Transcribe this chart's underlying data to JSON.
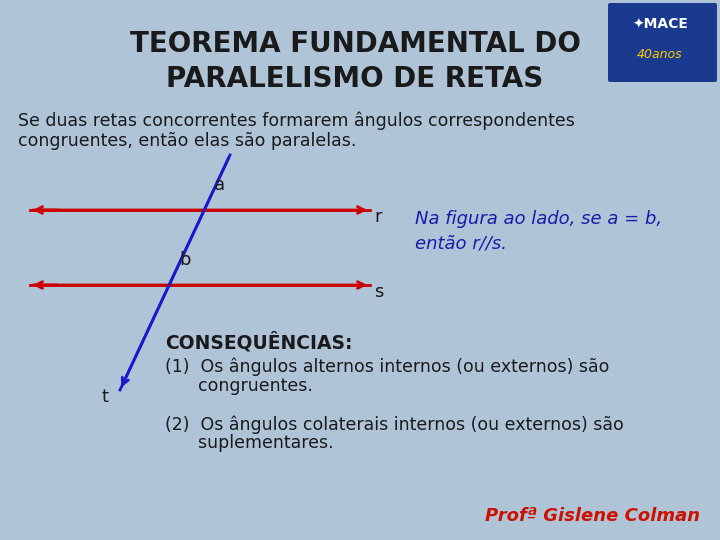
{
  "bg_color": "#b0c4d8",
  "title_line1": "TEOREMA FUNDAMENTAL DO",
  "title_line2": "PARALELISMO DE RETAS",
  "title_color": "#1a1a1a",
  "title_fontsize": 20,
  "subtitle_line1": "Se duas retas concorrentes formarem ângulos correspondentes",
  "subtitle_line2": "congruentes, então elas são paralelas.",
  "subtitle_fontsize": 12.5,
  "subtitle_color": "#1a1a1a",
  "note_line1": "Na figura ao lado, se a = b,",
  "note_line2": "então r//s.",
  "note_color": "#1a1aaa",
  "note_fontsize": 13,
  "line_color": "#cc0000",
  "transversal_color": "#1a1acc",
  "label_color": "#1a1a1a",
  "label_fontsize": 13,
  "conseq_title": "CONSEQUÊNCI AS:",
  "conseq_fontsize": 13.5,
  "conseq_color": "#1a1a1a",
  "item1_line1": "(1)  Os ângulos alternos internos (ou externos) são",
  "item1_line2": "      congruentes.",
  "item2_line1": "(2)  Os ângulos colaterais internos (ou externos) são",
  "item2_line2": "      suplementares.",
  "item_fontsize": 12.5,
  "prof_text": "Profª Gislene Colman",
  "prof_color": "#cc1100",
  "prof_fontsize": 13
}
